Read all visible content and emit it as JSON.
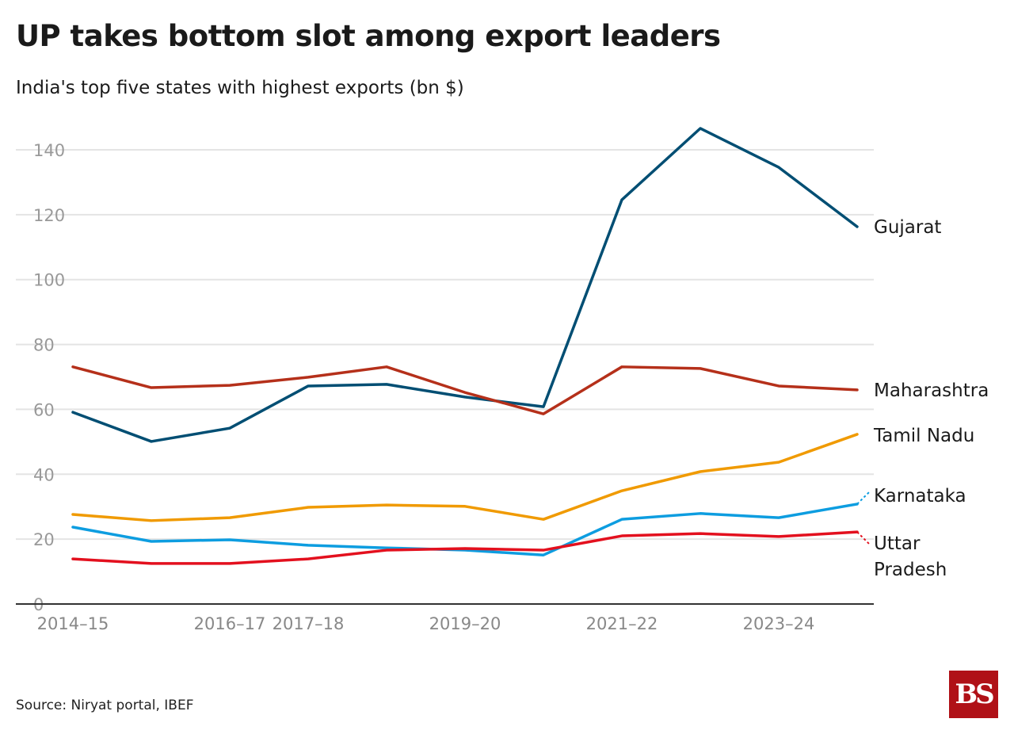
{
  "chart_data": {
    "type": "line",
    "title": "UP takes bottom slot among export leaders",
    "subtitle": "India's top five states with highest exports (bn $)",
    "source": "Source: Niryat portal, IBEF",
    "xlabel": "",
    "ylabel": "",
    "categories": [
      "2014-15",
      "2015-16",
      "2016-17",
      "2017-18",
      "2018-19",
      "2019-20",
      "2020-21",
      "2021-22",
      "2022-23",
      "2023-24",
      "2024-25"
    ],
    "x_tick_labels": [
      "2014-15",
      "",
      "2016-17",
      "2017-18",
      "",
      "2019-20",
      "",
      "2021-22",
      "",
      "2023-24",
      ""
    ],
    "ylim": [
      0,
      150
    ],
    "y_ticks": [
      0,
      20,
      40,
      60,
      80,
      100,
      120,
      140
    ],
    "grid": true,
    "series": [
      {
        "name": "Gujarat",
        "label": "Gujarat",
        "color": "#004e73",
        "values": [
          59.1,
          50.1,
          54.2,
          67.2,
          67.7,
          63.8,
          60.8,
          124.6,
          146.6,
          134.6,
          116.3
        ]
      },
      {
        "name": "Maharashtra",
        "label": "Maharashtra",
        "color": "#b5301a",
        "values": [
          73.1,
          66.7,
          67.4,
          69.9,
          73.1,
          65.2,
          58.6,
          73.1,
          72.6,
          67.2,
          66.0
        ]
      },
      {
        "name": "Tamil Nadu",
        "label": "Tamil Nadu",
        "color": "#f09a00",
        "values": [
          27.6,
          25.7,
          26.6,
          29.8,
          30.5,
          30.1,
          26.1,
          34.9,
          40.8,
          43.7,
          52.3
        ]
      },
      {
        "name": "Karnataka",
        "label": "Karnataka",
        "color": "#0d9de0",
        "values": [
          23.7,
          19.3,
          19.8,
          18.1,
          17.3,
          16.6,
          15.1,
          26.1,
          27.9,
          26.6,
          30.8
        ]
      },
      {
        "name": "Uttar Pradesh",
        "label": [
          "Uttar",
          "Pradesh"
        ],
        "color": "#e3101e",
        "values": [
          13.9,
          12.5,
          12.5,
          13.9,
          16.6,
          17.1,
          16.6,
          21.0,
          21.7,
          20.8,
          22.2
        ]
      }
    ],
    "legend": "direct labels at right"
  },
  "brand": "BS"
}
